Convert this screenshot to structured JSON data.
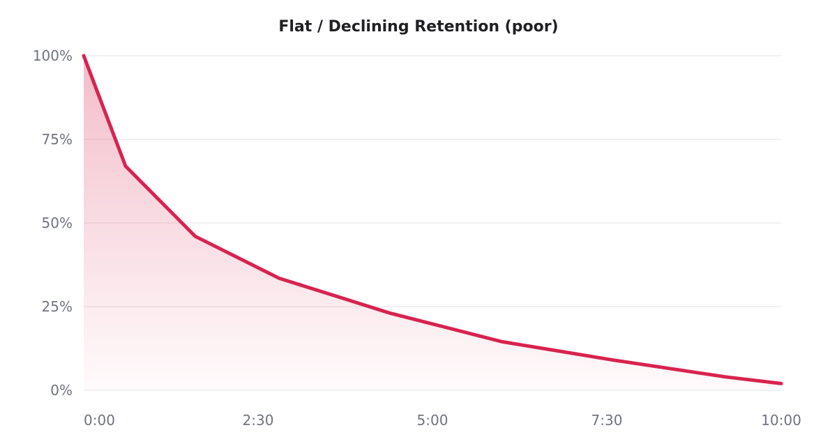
{
  "chart_data": {
    "type": "area",
    "title": "Flat / Declining Retention (poor)",
    "xlabel": "",
    "ylabel": "",
    "xlim": [
      0,
      600
    ],
    "ylim": [
      0,
      100
    ],
    "x_ticks": [
      {
        "value": 0,
        "label": "0:00"
      },
      {
        "value": 150,
        "label": "2:30"
      },
      {
        "value": 300,
        "label": "5:00"
      },
      {
        "value": 450,
        "label": "7:30"
      },
      {
        "value": 600,
        "label": "10:00"
      }
    ],
    "y_ticks": [
      {
        "value": 0,
        "label": "0%"
      },
      {
        "value": 25,
        "label": "25%"
      },
      {
        "value": 50,
        "label": "50%"
      },
      {
        "value": 75,
        "label": "75%"
      },
      {
        "value": 100,
        "label": "100%"
      }
    ],
    "grid": true,
    "series": [
      {
        "color": "#d8234f",
        "x": [
          0,
          36,
          96,
          168,
          264,
          360,
          456,
          552,
          600
        ],
        "y": [
          100,
          67,
          46,
          33.5,
          23,
          14.5,
          9,
          4,
          2
        ]
      }
    ]
  }
}
